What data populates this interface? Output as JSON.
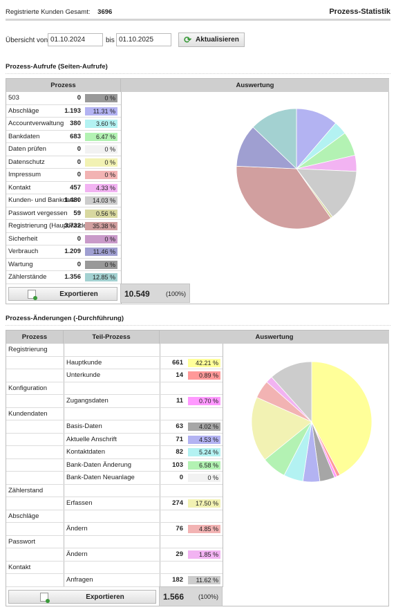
{
  "header": {
    "customers_label": "Registrierte Kunden Gesamt:",
    "customers_count": "3696",
    "page_title": "Prozess-Statistik"
  },
  "filter": {
    "from_label": "Übersicht von",
    "from_value": "01.10.2024",
    "to_label": "bis",
    "to_value": "01.10.2025",
    "refresh_label": "Aktualisieren"
  },
  "section1": {
    "title": "Prozess-Aufrufe (Seiten-Aufrufe)",
    "col_process": "Prozess",
    "col_eval": "Auswertung",
    "export_label": "Exportieren",
    "total": "10.549",
    "total_pct": "(100%)",
    "rows": [
      {
        "name": "503",
        "count": "0",
        "pct": "0 %",
        "color": "#999999"
      },
      {
        "name": "Abschläge",
        "count": "1.193",
        "pct": "11.31 %",
        "color": "#b3b3f2"
      },
      {
        "name": "Accountverwaltung",
        "count": "380",
        "pct": "3.60 %",
        "color": "#b3f2f2"
      },
      {
        "name": "Bankdaten",
        "count": "683",
        "pct": "6.47 %",
        "color": "#b3f2b3"
      },
      {
        "name": "Daten prüfen",
        "count": "0",
        "pct": "0 %",
        "color": "#f2f2f2"
      },
      {
        "name": "Datenschutz",
        "count": "0",
        "pct": "0 %",
        "color": "#f2f2b3"
      },
      {
        "name": "Impressum",
        "count": "0",
        "pct": "0 %",
        "color": "#f2b3b3"
      },
      {
        "name": "Kontakt",
        "count": "457",
        "pct": "4.33 %",
        "color": "#f2b3f2"
      },
      {
        "name": "Kunden- und Bankdaten",
        "count": "1.480",
        "pct": "14.03 %",
        "color": "#cccccc"
      },
      {
        "name": "Passwort vergessen",
        "count": "59",
        "pct": "0.56 %",
        "color": "#d8d8a0"
      },
      {
        "name": "Registrierung (Hauptkunde)",
        "count": "3.732",
        "pct": "35.38 %",
        "color": "#d19f9f"
      },
      {
        "name": "Sicherheit",
        "count": "0",
        "pct": "0 %",
        "color": "#c99ac9"
      },
      {
        "name": "Verbrauch",
        "count": "1.209",
        "pct": "11.46 %",
        "color": "#9f9fd1"
      },
      {
        "name": "Wartung",
        "count": "0",
        "pct": "0 %",
        "color": "#999999"
      },
      {
        "name": "Zählerstände",
        "count": "1.356",
        "pct": "12.85 %",
        "color": "#a3d1d1"
      }
    ]
  },
  "section2": {
    "title": "Prozess-Änderungen (-Durchführung)",
    "col_process": "Prozess",
    "col_sub": "Teil-Prozess",
    "col_eval": "Auswertung",
    "export_label": "Exportieren",
    "total": "1.566",
    "total_pct": "(100%)",
    "rows": [
      {
        "group": "Registrierung"
      },
      {
        "name": "Hauptkunde",
        "count": "661",
        "pct": "42.21 %",
        "color": "#ffff99"
      },
      {
        "name": "Unterkunde",
        "count": "14",
        "pct": "0.89 %",
        "color": "#ff9999"
      },
      {
        "group": "Konfiguration"
      },
      {
        "name": "Zugangsdaten",
        "count": "11",
        "pct": "0.70 %",
        "color": "#ff99ff"
      },
      {
        "group": "Kundendaten"
      },
      {
        "name": "Basis-Daten",
        "count": "63",
        "pct": "4.02 %",
        "color": "#a6a6a6"
      },
      {
        "name": "Aktuelle Anschrift",
        "count": "71",
        "pct": "4.53 %",
        "color": "#b3b3f2"
      },
      {
        "name": "Kontaktdaten",
        "count": "82",
        "pct": "5.24 %",
        "color": "#b3f2f2"
      },
      {
        "name": "Bank-Daten Änderung",
        "count": "103",
        "pct": "6.58 %",
        "color": "#b3f2b3"
      },
      {
        "name": "Bank-Daten Neuanlage",
        "count": "0",
        "pct": "0 %",
        "color": "#f2f2f2"
      },
      {
        "group": "Zählerstand"
      },
      {
        "name": "Erfassen",
        "count": "274",
        "pct": "17.50 %",
        "color": "#f2f2b3"
      },
      {
        "group": "Abschläge"
      },
      {
        "name": "Ändern",
        "count": "76",
        "pct": "4.85 %",
        "color": "#f2b3b3"
      },
      {
        "group": "Passwort"
      },
      {
        "name": "Ändern",
        "count": "29",
        "pct": "1.85 %",
        "color": "#f2b3f2"
      },
      {
        "group": "Kontakt"
      },
      {
        "name": "Anfragen",
        "count": "182",
        "pct": "11.62 %",
        "color": "#cccccc"
      }
    ]
  },
  "chart_data": [
    {
      "type": "pie",
      "categories": [
        "503",
        "Abschläge",
        "Accountverwaltung",
        "Bankdaten",
        "Daten prüfen",
        "Datenschutz",
        "Impressum",
        "Kontakt",
        "Kunden- und Bankdaten",
        "Passwort vergessen",
        "Registrierung (Hauptkunde)",
        "Sicherheit",
        "Verbrauch",
        "Wartung",
        "Zählerstände"
      ],
      "values": [
        0,
        11.31,
        3.6,
        6.47,
        0,
        0,
        0,
        4.33,
        14.03,
        0.56,
        35.38,
        0,
        11.46,
        0,
        12.85
      ],
      "colors": [
        "#999999",
        "#b3b3f2",
        "#b3f2f2",
        "#b3f2b3",
        "#f2f2f2",
        "#f2f2b3",
        "#f2b3b3",
        "#f2b3f2",
        "#cccccc",
        "#d8d8a0",
        "#d19f9f",
        "#c99ac9",
        "#9f9fd1",
        "#999999",
        "#a3d1d1"
      ]
    },
    {
      "type": "pie",
      "categories": [
        "Hauptkunde",
        "Unterkunde",
        "Zugangsdaten",
        "Basis-Daten",
        "Aktuelle Anschrift",
        "Kontaktdaten",
        "Bank-Daten Änderung",
        "Bank-Daten Neuanlage",
        "Erfassen",
        "Abschläge Ändern",
        "Passwort Ändern",
        "Anfragen"
      ],
      "values": [
        42.21,
        0.89,
        0.7,
        4.02,
        4.53,
        5.24,
        6.58,
        0,
        17.5,
        4.85,
        1.85,
        11.62
      ],
      "colors": [
        "#ffff99",
        "#ff9999",
        "#ff99ff",
        "#a6a6a6",
        "#b3b3f2",
        "#b3f2f2",
        "#b3f2b3",
        "#f2f2f2",
        "#f2f2b3",
        "#f2b3b3",
        "#f2b3f2",
        "#cccccc"
      ]
    }
  ]
}
